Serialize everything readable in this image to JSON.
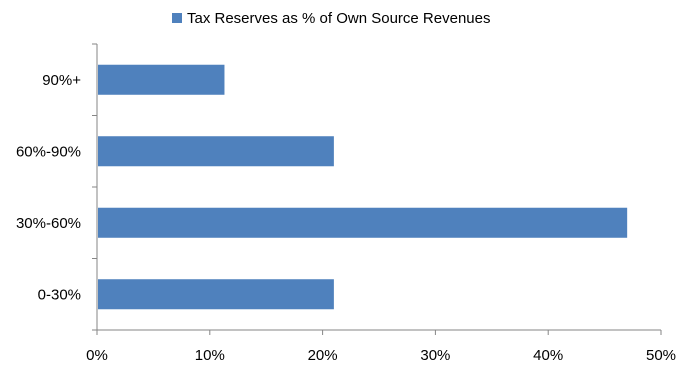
{
  "chart_data": {
    "type": "bar",
    "orientation": "horizontal",
    "title": "",
    "xlabel": "",
    "ylabel": "",
    "categories": [
      "0-30%",
      "30%-60%",
      "60%-90%",
      "90%+"
    ],
    "series": [
      {
        "name": "Tax Reserves as % of Own Source Revenues",
        "values": [
          21,
          47,
          21,
          11.3
        ],
        "color": "#4f81bd"
      }
    ],
    "x_ticks": [
      "0%",
      "10%",
      "20%",
      "30%",
      "40%",
      "50%"
    ],
    "xlim": [
      0,
      50
    ],
    "value_unit": "percent",
    "grid": false,
    "legend_position": "top"
  }
}
